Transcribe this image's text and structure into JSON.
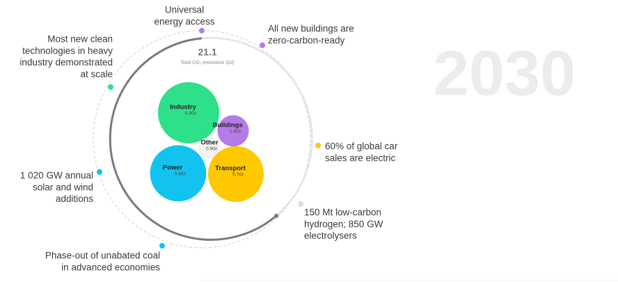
{
  "year": "2030",
  "chart_data": {
    "type": "bubble",
    "total": "21.1",
    "total_label": "Total CO₂ emissions (Gt)",
    "categories": [
      "Industry",
      "Buildings",
      "Other",
      "Power",
      "Transport"
    ],
    "values": [
      6.9,
      1.8,
      0.9,
      5.8,
      5.7
    ],
    "value_labels": [
      "6.9Gt",
      "1.8Gt",
      "0.9Gt",
      "5.8Gt",
      "5.7Gt"
    ],
    "colors": [
      "#2ee08a",
      "#b57be8",
      "#f2f2f2",
      "#12c3f0",
      "#ffc800"
    ]
  },
  "milestones": [
    {
      "lines": [
        "Universal",
        "energy access"
      ],
      "color": "#b57be8"
    },
    {
      "lines": [
        "All new buildings are",
        "zero-carbon-ready"
      ],
      "color": "#b57be8"
    },
    {
      "lines": [
        "Most new clean",
        "technologies in heavy",
        "industry demonstrated",
        "at scale"
      ],
      "color": "#2ee08a"
    },
    {
      "lines": [
        "60% of global car",
        "sales are electric"
      ],
      "color": "#ffc800"
    },
    {
      "lines": [
        "1 020 GW annual",
        "solar and wind",
        "additions"
      ],
      "color": "#12c3f0"
    },
    {
      "lines": [
        "150 Mt low-carbon",
        "hydrogen; 850 GW",
        "electrolysers"
      ],
      "color": "#dddddd"
    },
    {
      "lines": [
        "Phase-out of unabated coal",
        "in advanced economies"
      ],
      "color": "#12c3f0"
    }
  ]
}
